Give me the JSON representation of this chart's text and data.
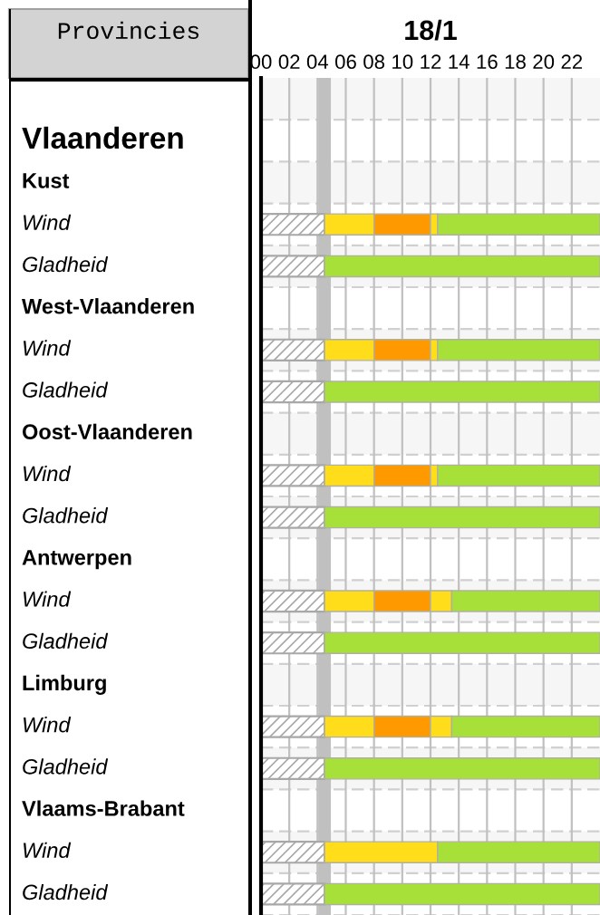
{
  "chart_data": {
    "type": "bar",
    "orientation": "horizontal",
    "stacked": true,
    "ylabel": "Provincies",
    "xlabel": "18/1",
    "categories": [
      null,
      "Vlaanderen",
      "Kust",
      "Wind",
      "Gladheid",
      "West-Vlaanderen",
      "Wind",
      "Gladheid",
      "Oost-Vlaanderen",
      "Wind",
      "Gladheid",
      "Antwerpen",
      "Wind",
      "Gladheid",
      "Limburg",
      "Wind",
      "Gladheid",
      "Vlaams-Brabant",
      "Wind",
      "Gladheid"
    ],
    "series": [
      {
        "color": "#a8a8a8",
        "values": [
          null,
          null,
          null,
          4.5,
          4.5,
          null,
          4.5,
          4.5,
          null,
          4.5,
          4.5,
          null,
          4.5,
          4.5,
          null,
          4.5,
          4.5,
          null,
          4.5,
          4.5
        ]
      },
      {
        "color": "#ffdd1a",
        "values": [
          null,
          null,
          null,
          3.5,
          null,
          null,
          3.5,
          null,
          null,
          3.5,
          null,
          null,
          3.5,
          null,
          null,
          3.5,
          null,
          null,
          8,
          null
        ]
      },
      {
        "color": "#ff9900",
        "values": [
          null,
          null,
          null,
          4,
          null,
          null,
          4,
          null,
          null,
          4,
          null,
          null,
          4,
          null,
          null,
          4,
          null,
          null,
          null,
          null
        ]
      },
      {
        "color": "#ffdd1a",
        "values": [
          null,
          null,
          null,
          0.5,
          null,
          null,
          0.5,
          null,
          null,
          0.5,
          null,
          null,
          1.5,
          null,
          null,
          1.5,
          null,
          null,
          null,
          null
        ]
      },
      {
        "color": "#a8e03a",
        "values": [
          null,
          null,
          null,
          11.5,
          19.5,
          null,
          11.5,
          19.5,
          null,
          11.5,
          19.5,
          null,
          10.5,
          19.5,
          null,
          10.5,
          19.5,
          null,
          11.5,
          19.5
        ]
      }
    ],
    "xlim": [
      0,
      24
    ],
    "xticks": [
      {
        "value": 0,
        "label": "00"
      },
      {
        "value": 2,
        "label": "02"
      },
      {
        "value": 4,
        "label": "04"
      },
      {
        "value": 6,
        "label": "06"
      },
      {
        "value": 8,
        "label": "08"
      },
      10,
      12,
      14,
      16,
      18,
      20,
      22
    ],
    "grid": "x",
    "ref_lines": [
      {
        "axis": "x",
        "value": 4.5,
        "color": "#c0c0c0"
      }
    ]
  }
}
